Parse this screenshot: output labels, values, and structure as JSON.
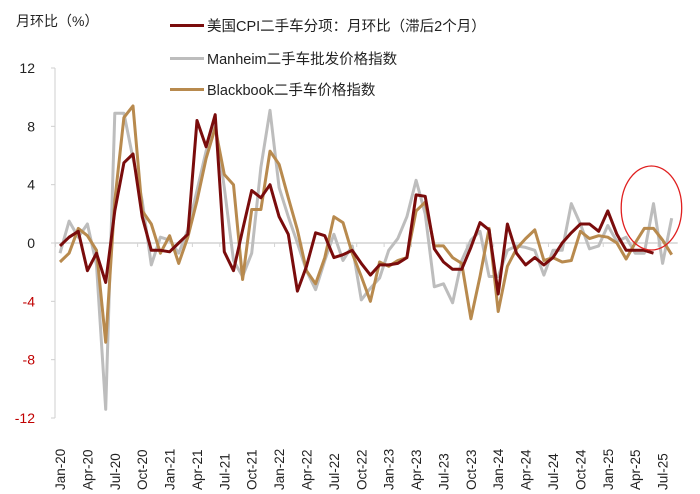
{
  "chart_data": {
    "type": "line",
    "title": "",
    "ylabel": "月环比（%）",
    "xlabel": "",
    "ylim": [
      -12,
      12
    ],
    "yticks": [
      12,
      8,
      4,
      0,
      -4,
      -8,
      -12
    ],
    "negative_tick_color": "#c00000",
    "grid": false,
    "legend_position": "top",
    "x": [
      "Jan-20",
      "Feb-20",
      "Mar-20",
      "Apr-20",
      "May-20",
      "Jun-20",
      "Jul-20",
      "Aug-20",
      "Sep-20",
      "Oct-20",
      "Nov-20",
      "Dec-20",
      "Jan-21",
      "Feb-21",
      "Mar-21",
      "Apr-21",
      "May-21",
      "Jun-21",
      "Jul-21",
      "Aug-21",
      "Sep-21",
      "Oct-21",
      "Nov-21",
      "Dec-21",
      "Jan-22",
      "Feb-22",
      "Mar-22",
      "Apr-22",
      "May-22",
      "Jun-22",
      "Jul-22",
      "Aug-22",
      "Sep-22",
      "Oct-22",
      "Nov-22",
      "Dec-22",
      "Jan-23",
      "Feb-23",
      "Mar-23",
      "Apr-23",
      "May-23",
      "Jun-23",
      "Jul-23",
      "Aug-23",
      "Sep-23",
      "Oct-23",
      "Nov-23",
      "Dec-23",
      "Jan-24",
      "Feb-24",
      "Mar-24",
      "Apr-24",
      "May-24",
      "Jun-24",
      "Jul-24",
      "Aug-24",
      "Sep-24",
      "Oct-24",
      "Nov-24",
      "Dec-24",
      "Jan-25",
      "Feb-25",
      "Mar-25",
      "Apr-25",
      "May-25",
      "Jun-25",
      "Jul-25",
      "Aug-25"
    ],
    "xtick_labels": [
      "Jan-20",
      "Apr-20",
      "Jul-20",
      "Oct-20",
      "Jan-21",
      "Apr-21",
      "Jul-21",
      "Oct-21",
      "Jan-22",
      "Apr-22",
      "Jul-22",
      "Oct-22",
      "Jan-23",
      "Apr-23",
      "Jul-23",
      "Oct-23",
      "Jan-24",
      "Apr-24",
      "Jul-24",
      "Oct-24",
      "Jan-25",
      "Apr-25",
      "Jul-25"
    ],
    "series": [
      {
        "name": "美国CPI二手车分项：月环比（滞后2个月）",
        "color": "#7a0c0c",
        "values": [
          -0.2,
          0.4,
          0.8,
          -1.9,
          -0.7,
          -2.7,
          2.2,
          5.5,
          6.1,
          1.8,
          -0.5,
          -0.5,
          -0.6,
          0.0,
          0.6,
          8.4,
          6.6,
          8.8,
          -0.6,
          -1.9,
          0.9,
          3.6,
          3.1,
          4.0,
          1.8,
          0.6,
          -3.3,
          -1.6,
          0.7,
          0.5,
          -1.0,
          -0.8,
          -0.5,
          -1.4,
          -2.2,
          -1.5,
          -1.5,
          -1.4,
          -1.0,
          3.3,
          3.2,
          -0.4,
          -1.3,
          -1.8,
          -1.8,
          -0.3,
          1.4,
          0.9,
          -3.5,
          1.3,
          -0.7,
          -1.5,
          -1.0,
          -1.5,
          -1.0,
          0.0,
          0.7,
          1.3,
          1.3,
          0.8,
          2.2,
          0.6,
          -0.5,
          -0.5,
          -0.5,
          -0.7,
          null,
          null
        ]
      },
      {
        "name": "Manheim二手车批发价格指数",
        "color": "#bdbdbd",
        "values": [
          -0.7,
          1.5,
          0.4,
          1.3,
          -1.5,
          -11.4,
          8.9,
          8.9,
          5.8,
          2.9,
          -1.5,
          0.4,
          0.2,
          -0.7,
          0.9,
          3.6,
          6.3,
          8.2,
          3.8,
          -1.2,
          -2.3,
          -0.7,
          5.2,
          9.1,
          3.8,
          1.8,
          0.0,
          -1.9,
          -3.2,
          -1.2,
          0.6,
          -1.2,
          -0.2,
          -3.9,
          -3.1,
          -2.4,
          -0.5,
          0.3,
          1.8,
          4.3,
          2.0,
          -3.0,
          -2.8,
          -4.1,
          -1.2,
          0.2,
          0.8,
          -2.3,
          -2.3,
          -0.5,
          -0.2,
          -0.3,
          -0.5,
          -2.2,
          -0.5,
          -0.5,
          2.7,
          1.3,
          -0.4,
          -0.2,
          1.2,
          0.1,
          0.4,
          -0.7,
          -0.7,
          2.7,
          -1.4,
          1.7
        ]
      },
      {
        "name": "Blackbook二手车价格指数",
        "color": "#b88a4e",
        "values": [
          -1.3,
          -0.7,
          1.0,
          0.5,
          -0.5,
          -6.8,
          2.9,
          8.6,
          9.4,
          2.2,
          1.3,
          -0.7,
          0.5,
          -1.4,
          0.4,
          2.9,
          5.8,
          7.9,
          4.7,
          4.0,
          -2.5,
          2.3,
          2.3,
          6.3,
          5.4,
          3.1,
          0.9,
          -1.9,
          -2.8,
          -1.0,
          1.8,
          1.4,
          -0.7,
          -2.3,
          -4.0,
          -1.3,
          -1.6,
          -1.2,
          -1.0,
          2.2,
          2.8,
          -0.2,
          -0.2,
          -1.0,
          -1.4,
          -5.2,
          -2.3,
          1.0,
          -4.7,
          -1.6,
          -0.4,
          0.3,
          0.9,
          -1.2,
          -1.0,
          -1.3,
          -1.2,
          0.8,
          0.3,
          0.5,
          0.4,
          0.0,
          -1.1,
          0.0,
          1.0,
          1.0,
          0.2,
          -0.8
        ]
      }
    ],
    "highlight": {
      "shape": "ellipse",
      "color": "#e02020",
      "from": "Apr-25",
      "to": "Aug-25"
    }
  }
}
